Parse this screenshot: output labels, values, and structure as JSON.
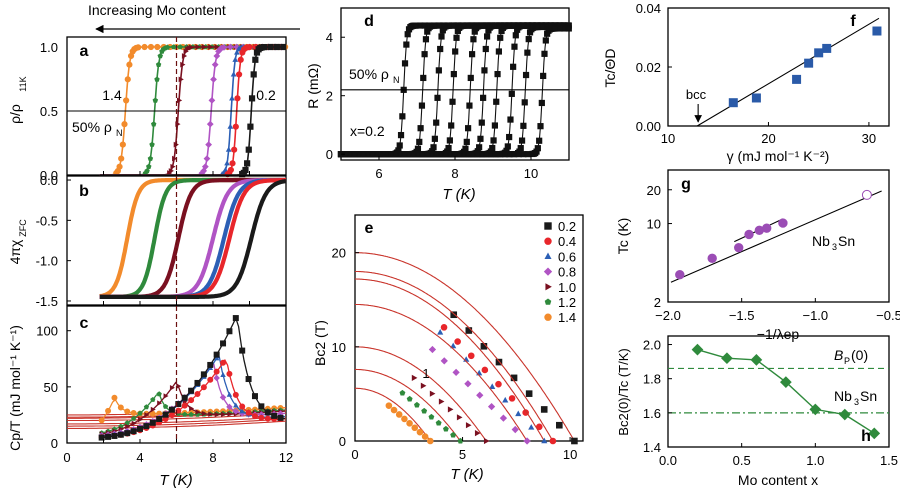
{
  "figure": {
    "header_text": "Increasing Mo content",
    "colors": {
      "x0.2": "#1a1a1a",
      "x0.4": "#e8262b",
      "x0.6": "#2c5fb5",
      "x0.8": "#b054c4",
      "x1.0": "#7a1020",
      "x1.2": "#2f8a3c",
      "x1.4": "#f28b2c",
      "fit": "#c9342b",
      "blue_square": "#2a5aa8",
      "purple": "#9b4db5",
      "green_diamond": "#2f8a3c"
    }
  },
  "chart_data": [
    {
      "id": "a",
      "panel_label": "a",
      "type": "line",
      "ylabel": "ρ/ρ11K",
      "ylim": [
        0,
        1.05
      ],
      "yticks": [
        "0.0",
        "0.5",
        "1.0"
      ],
      "xlim": [
        0,
        12
      ],
      "reference_label": "50% ρN",
      "reference_y": 0.5,
      "annotations": [
        "1.4",
        "0.2"
      ],
      "series": [
        {
          "name": "1.4",
          "color": "#f28b2c",
          "tc": 3.2,
          "w": 0.12,
          "start": 1.8
        },
        {
          "name": "1.2",
          "color": "#2f8a3c",
          "tc": 4.8,
          "w": 0.12,
          "start": 1.8
        },
        {
          "name": "1.0",
          "color": "#7a1020",
          "tc": 6.1,
          "w": 0.12,
          "start": 1.8
        },
        {
          "name": "0.8",
          "color": "#b054c4",
          "tc": 7.9,
          "w": 0.12,
          "start": 1.8
        },
        {
          "name": "0.6",
          "color": "#2c5fb5",
          "tc": 9.0,
          "w": 0.1,
          "start": 1.8
        },
        {
          "name": "0.4",
          "color": "#e8262b",
          "tc": 9.3,
          "w": 0.1,
          "start": 1.8
        },
        {
          "name": "0.2",
          "color": "#1a1a1a",
          "tc": 10.1,
          "w": 0.1,
          "start": 1.8
        }
      ]
    },
    {
      "id": "b",
      "panel_label": "b",
      "type": "line",
      "ylabel": "4πχZFC",
      "ylim": [
        -1.55,
        0.05
      ],
      "yticks": [
        "0.0",
        "-0.5",
        "-1.0",
        "-1.5"
      ],
      "xlim": [
        0,
        12
      ],
      "series": [
        {
          "name": "1.4",
          "color": "#f28b2c",
          "tc": 3.3,
          "w": 0.3,
          "start": 1.8
        },
        {
          "name": "1.2",
          "color": "#2f8a3c",
          "tc": 4.8,
          "w": 0.3,
          "start": 1.8
        },
        {
          "name": "1.0",
          "color": "#7a1020",
          "tc": 6.1,
          "w": 0.35,
          "start": 1.8
        },
        {
          "name": "0.8",
          "color": "#b054c4",
          "tc": 8.0,
          "w": 0.4,
          "start": 1.8
        },
        {
          "name": "0.6",
          "color": "#2c5fb5",
          "tc": 8.6,
          "w": 0.4,
          "start": 1.8
        },
        {
          "name": "0.4",
          "color": "#e8262b",
          "tc": 8.9,
          "w": 0.4,
          "start": 1.8
        },
        {
          "name": "0.2",
          "color": "#1a1a1a",
          "tc": 10.1,
          "w": 0.4,
          "start": 1.8
        }
      ]
    },
    {
      "id": "c",
      "panel_label": "c",
      "type": "line",
      "xlabel": "T (K)",
      "ylabel": "Cp/T (mJ mol⁻¹ K⁻¹)",
      "xlim": [
        0,
        12
      ],
      "ylim": [
        0,
        122
      ],
      "xticks": [
        "0",
        "4",
        "8",
        "12"
      ],
      "yticks": [
        "0",
        "50",
        "100"
      ],
      "vline_x": 6,
      "series": [
        {
          "name": "1.4",
          "color": "#f28b2c",
          "g": 25,
          "tc": 2.6,
          "peak": 40,
          "bk": 0.08
        },
        {
          "name": "1.2",
          "color": "#2f8a3c",
          "g": 23,
          "tc": 5.0,
          "peak": 45,
          "bk": 0.08
        },
        {
          "name": "1.0",
          "color": "#7a1020",
          "g": 22,
          "tc": 6.0,
          "peak": 55,
          "bk": 0.1
        },
        {
          "name": "0.8",
          "color": "#b054c4",
          "g": 20,
          "tc": 8.0,
          "peak": 72,
          "bk": 0.1
        },
        {
          "name": "0.6",
          "color": "#2c5fb5",
          "g": 17,
          "tc": 8.3,
          "peak": 78,
          "bk": 0.12
        },
        {
          "name": "0.4",
          "color": "#e8262b",
          "g": 15,
          "tc": 8.7,
          "peak": 75,
          "bk": 0.12
        },
        {
          "name": "0.2",
          "color": "#1a1a1a",
          "g": 13,
          "tc": 9.3,
          "peak": 113,
          "bk": 0.14
        }
      ]
    },
    {
      "id": "d",
      "panel_label": "d",
      "type": "line",
      "xlabel": "T (K)",
      "ylabel": "R (mΩ)",
      "xlim": [
        5,
        11
      ],
      "ylim": [
        -0.2,
        5
      ],
      "xticks": [
        "6",
        "8",
        "10"
      ],
      "yticks": [
        "0",
        "2",
        "4"
      ],
      "reference_label": "50% ρN",
      "reference_y": 2.2,
      "annotation": "x=0.2",
      "curves": [
        {
          "tc": 6.65,
          "rn": 4.4
        },
        {
          "tc": 7.15,
          "rn": 4.4
        },
        {
          "tc": 7.55,
          "rn": 4.4
        },
        {
          "tc": 7.95,
          "rn": 4.4
        },
        {
          "tc": 8.4,
          "rn": 4.4
        },
        {
          "tc": 8.75,
          "rn": 4.4
        },
        {
          "tc": 9.1,
          "rn": 4.4
        },
        {
          "tc": 9.5,
          "rn": 4.4
        },
        {
          "tc": 9.85,
          "rn": 4.35
        },
        {
          "tc": 10.3,
          "rn": 4.3
        }
      ]
    },
    {
      "id": "e",
      "panel_label": "e",
      "type": "scatter",
      "xlabel": "T (K)",
      "ylabel": "Bc2 (T)",
      "xlim": [
        0,
        10.6
      ],
      "ylim": [
        0,
        24
      ],
      "xticks": [
        "0",
        "5",
        "10"
      ],
      "yticks": [
        "0",
        "10",
        "20"
      ],
      "annotation": "1",
      "legend": [
        "0.2",
        "0.4",
        "0.6",
        "0.8",
        "1.0",
        "1.2",
        "1.4"
      ],
      "series": [
        {
          "name": "0.2",
          "color": "#1a1a1a",
          "b0": 20.0,
          "tc": 10.2,
          "marker": "square"
        },
        {
          "name": "0.4",
          "color": "#e8262b",
          "b0": 18.0,
          "tc": 9.2,
          "marker": "circle"
        },
        {
          "name": "0.6",
          "color": "#2c5fb5",
          "b0": 17.2,
          "tc": 8.8,
          "marker": "triangle"
        },
        {
          "name": "0.8",
          "color": "#b054c4",
          "b0": 14.5,
          "tc": 8.0,
          "marker": "diamond"
        },
        {
          "name": "1.0",
          "color": "#7a1020",
          "b0": 10.0,
          "tc": 6.1,
          "marker": "triangle-right"
        },
        {
          "name": "1.2",
          "color": "#2f8a3c",
          "b0": 7.6,
          "tc": 4.9,
          "marker": "pentagon"
        },
        {
          "name": "1.4",
          "color": "#f28b2c",
          "b0": 5.6,
          "tc": 3.5,
          "marker": "circle"
        }
      ]
    },
    {
      "id": "f",
      "panel_label": "f",
      "type": "scatter",
      "xlabel": "γ (mJ mol⁻¹ K⁻²)",
      "ylabel": "Tc/ΘD",
      "xlim": [
        10,
        32
      ],
      "ylim": [
        0,
        0.04
      ],
      "xticks": [
        "10",
        "20",
        "30"
      ],
      "yticks": [
        "0.00",
        "0.02",
        "0.04"
      ],
      "annotation": "bcc",
      "annotation_x": 13,
      "points": [
        [
          16.5,
          0.0079
        ],
        [
          18.8,
          0.0095
        ],
        [
          22.8,
          0.0158
        ],
        [
          24.0,
          0.0213
        ],
        [
          25.0,
          0.0248
        ],
        [
          25.8,
          0.0263
        ],
        [
          30.8,
          0.0322
        ]
      ],
      "fit_line": [
        [
          12.9,
          0.0
        ],
        [
          31.0,
          0.0365
        ]
      ]
    },
    {
      "id": "g",
      "panel_label": "g",
      "type": "scatter",
      "y_scale": "log",
      "xlabel": "−1/λep",
      "ylabel": "Tc (K)",
      "xlim": [
        -2.0,
        -0.5
      ],
      "ylim": [
        2,
        30
      ],
      "xticks": [
        "−2.0",
        "−1.5",
        "−1.0",
        "−0.5"
      ],
      "yticks": [
        "2",
        "10",
        "20"
      ],
      "annotation": "Nb3Sn",
      "points": [
        [
          -1.92,
          3.5
        ],
        [
          -1.7,
          4.9
        ],
        [
          -1.52,
          6.1
        ],
        [
          -1.45,
          8.0
        ],
        [
          -1.38,
          8.7
        ],
        [
          -1.33,
          9.1
        ],
        [
          -1.22,
          10.1
        ]
      ],
      "open_point": [
        -0.65,
        18.0
      ],
      "fit_lines": [
        [
          [
            -1.98,
            3.0
          ],
          [
            -0.55,
            19.5
          ]
        ],
        [
          [
            -1.55,
            6.9
          ],
          [
            -1.22,
            11.0
          ]
        ]
      ]
    },
    {
      "id": "h",
      "panel_label": "h",
      "type": "line",
      "xlabel": "Mo content x",
      "ylabel": "Bc2(0)/Tc (T/K)",
      "xlim": [
        0,
        1.5
      ],
      "ylim": [
        1.4,
        2.05
      ],
      "xticks": [
        "0.0",
        "0.5",
        "1.0",
        "1.5"
      ],
      "yticks": [
        "1.4",
        "1.6",
        "1.8",
        "2.0"
      ],
      "x": [
        0.2,
        0.4,
        0.6,
        0.8,
        1.0,
        1.2,
        1.4
      ],
      "y": [
        1.97,
        1.92,
        1.91,
        1.78,
        1.62,
        1.59,
        1.48
      ],
      "ref_lines": [
        {
          "label": "BP(0)",
          "y": 1.86,
          "style": "dashed"
        },
        {
          "label": "Nb3Sn",
          "y": 1.6,
          "style": "dashdot"
        }
      ]
    }
  ]
}
